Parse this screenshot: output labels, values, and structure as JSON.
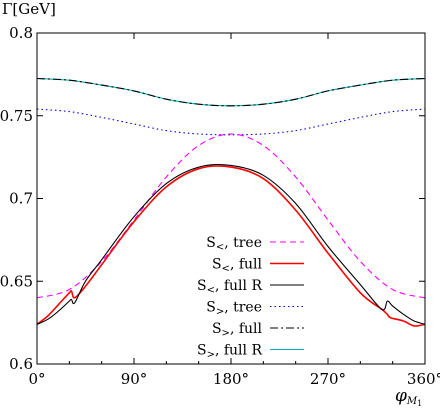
{
  "chart_data": {
    "type": "line",
    "title": "",
    "ylabel": "Γ[GeV]",
    "xlabel": "φ_{M_1}",
    "xlabel_main": "φ",
    "xlabel_sub": "M",
    "xlabel_subsub": "1",
    "xlim": [
      0,
      360
    ],
    "ylim": [
      0.6,
      0.8
    ],
    "xticks": [
      0,
      90,
      180,
      270,
      360
    ],
    "xtick_labels": [
      "0°",
      "90°",
      "180°",
      "270°",
      "360°"
    ],
    "yticks": [
      0.6,
      0.65,
      0.7,
      0.75,
      0.8
    ],
    "ytick_labels": [
      "0.6",
      "0.65",
      "0.7",
      "0.75",
      "0.8"
    ],
    "grid": false,
    "legend_position": "bottom-right",
    "series": [
      {
        "name": "S<, tree",
        "label_main": "S",
        "label_sub": "<",
        "label_rest": ", tree",
        "color": "#ff00ff",
        "dash": "dashed",
        "x": [
          0,
          30,
          60,
          90,
          120,
          150,
          180,
          210,
          240,
          270,
          300,
          330,
          360
        ],
        "y": [
          0.64,
          0.645,
          0.662,
          0.687,
          0.713,
          0.732,
          0.739,
          0.732,
          0.713,
          0.687,
          0.662,
          0.645,
          0.64
        ]
      },
      {
        "name": "S<, full",
        "label_main": "S",
        "label_sub": "<",
        "label_rest": ", full",
        "color": "#ff0000",
        "dash": "solid",
        "x": [
          0,
          10,
          20,
          30,
          32,
          35,
          45,
          60,
          90,
          120,
          150,
          180,
          210,
          240,
          270,
          300,
          320,
          325,
          328,
          340,
          350,
          360
        ],
        "y": [
          0.624,
          0.629,
          0.636,
          0.643,
          0.644,
          0.64,
          0.647,
          0.66,
          0.686,
          0.707,
          0.718,
          0.719,
          0.712,
          0.693,
          0.667,
          0.643,
          0.633,
          0.63,
          0.628,
          0.626,
          0.623,
          0.624
        ]
      },
      {
        "name": "S<, full R",
        "label_main": "S",
        "label_sub": "<",
        "label_rest": ", full R",
        "color": "#000000",
        "dash": "solid",
        "x": [
          0,
          10,
          20,
          30,
          32,
          35,
          45,
          60,
          90,
          120,
          150,
          180,
          210,
          240,
          270,
          300,
          320,
          325,
          330,
          340,
          350,
          360
        ],
        "y": [
          0.624,
          0.627,
          0.632,
          0.638,
          0.639,
          0.637,
          0.65,
          0.663,
          0.689,
          0.709,
          0.719,
          0.72,
          0.714,
          0.697,
          0.671,
          0.648,
          0.633,
          0.638,
          0.635,
          0.63,
          0.626,
          0.624
        ]
      },
      {
        "name": "S>, tree",
        "label_main": "S",
        "label_sub": ">",
        "label_rest": ", tree",
        "color": "#0000dd",
        "dash": "dotted",
        "x": [
          0,
          30,
          60,
          90,
          120,
          150,
          180,
          210,
          240,
          270,
          300,
          330,
          360
        ],
        "y": [
          0.754,
          0.7525,
          0.749,
          0.745,
          0.741,
          0.739,
          0.7385,
          0.739,
          0.741,
          0.745,
          0.749,
          0.7525,
          0.754
        ]
      },
      {
        "name": "S>, full",
        "label_main": "S",
        "label_sub": ">",
        "label_rest": ", full",
        "color": "#000000",
        "dash": "dashdot",
        "x": [
          0,
          30,
          60,
          90,
          120,
          150,
          180,
          210,
          240,
          270,
          300,
          330,
          360
        ],
        "y": [
          0.7725,
          0.7715,
          0.7685,
          0.765,
          0.76,
          0.757,
          0.756,
          0.757,
          0.76,
          0.765,
          0.7685,
          0.7715,
          0.7725
        ]
      },
      {
        "name": "S>, full R",
        "label_main": "S",
        "label_sub": ">",
        "label_rest": ", full R",
        "color": "#00b3b3",
        "dash": "solid",
        "x": [
          0,
          30,
          60,
          90,
          120,
          150,
          180,
          210,
          240,
          270,
          300,
          330,
          360
        ],
        "y": [
          0.7725,
          0.7715,
          0.7685,
          0.765,
          0.76,
          0.757,
          0.756,
          0.757,
          0.76,
          0.765,
          0.7685,
          0.7715,
          0.7725
        ]
      }
    ]
  }
}
